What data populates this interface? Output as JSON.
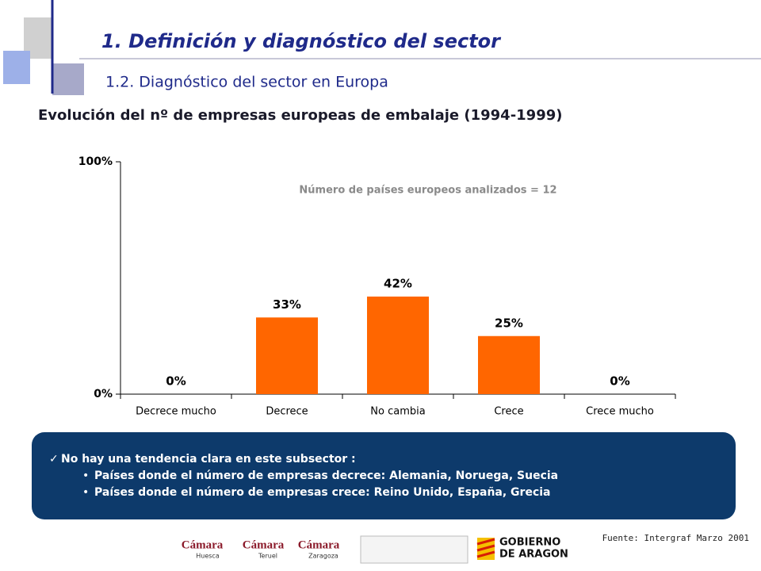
{
  "header": {
    "title": "1.  Definición y diagnóstico del sector",
    "subtitle": "1.2. Diagnóstico del sector en Europa"
  },
  "chart_data": {
    "type": "bar",
    "title": "Evolución del nº de empresas europeas de embalaje (1994-1999)",
    "annotation": "Número de países europeos analizados = 12",
    "categories": [
      "Decrece mucho",
      "Decrece",
      "No cambia",
      "Crece",
      "Crece mucho"
    ],
    "values": [
      0,
      33,
      42,
      25,
      0
    ],
    "value_labels": [
      "0%",
      "33%",
      "42%",
      "25%",
      "0%"
    ],
    "color": "#ff6600",
    "ylim": [
      0,
      100
    ],
    "yticks": [
      {
        "value": 0,
        "label": "0%"
      },
      {
        "value": 100,
        "label": "100%"
      }
    ],
    "grid": false
  },
  "note": {
    "heading": "No hay una tendencia clara en este subsector :",
    "bullets": [
      "Países donde el número de empresas decrece: Alemania, Noruega, Suecia",
      "Países donde el número de empresas crece: Reino Unido, España, Grecia"
    ]
  },
  "footer": {
    "source": "Fuente: Intergraf  Marzo 2001",
    "logos": [
      "Cámara",
      "Huesca",
      "Cámara",
      "Teruel",
      "Cámara",
      "Zaragoza",
      "GOBIERNO",
      "DE ARAGON"
    ]
  }
}
